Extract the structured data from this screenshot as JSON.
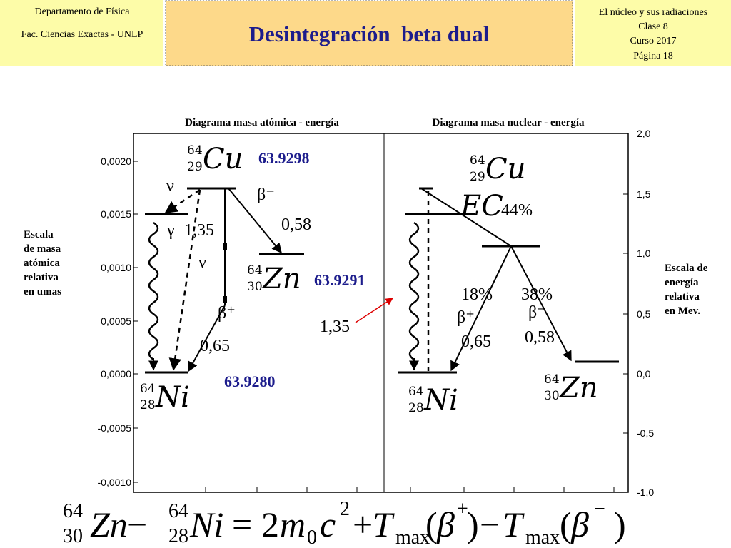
{
  "header": {
    "left": [
      "Departamento de Física",
      "Fac. Ciencias Exactas - UNLP"
    ],
    "title": "Desintegración  beta dual",
    "right": [
      "El núcleo y sus radiaciones",
      "Clase 8",
      "Curso 2017",
      "Página 18"
    ]
  },
  "diagram": {
    "titles": [
      "Diagrama masa atómica - energía",
      "Diagrama masa nuclear - energía"
    ],
    "left_axis": {
      "ticks": [
        "0,0020",
        "0,0015",
        "0,0010",
        "0,0005",
        "0,0000",
        "-0,0005",
        "-0,0010"
      ],
      "label": [
        "Escala",
        "de masa",
        "atómica",
        "relativa",
        "en umas"
      ]
    },
    "right_axis": {
      "ticks": [
        "2,0",
        "1,5",
        "1,0",
        "0,5",
        "0,0",
        "-0,5",
        "-1,0"
      ],
      "label": [
        "Escala de",
        "energía",
        "relativa",
        "en Mev."
      ]
    },
    "atomic": {
      "nuclides": [
        {
          "mass": "64",
          "z": "29",
          "symbol": "Cu",
          "atomic_mass": "63.9298"
        },
        {
          "mass": "64",
          "z": "30",
          "symbol": "Zn",
          "atomic_mass": "63.9291"
        },
        {
          "mass": "64",
          "z": "28",
          "symbol": "Ni",
          "atomic_mass": "63.9280"
        }
      ],
      "labels": [
        "ν",
        "γ",
        "1,35",
        "β⁻",
        "0,58",
        "ν",
        "β⁺",
        "0,65"
      ]
    },
    "nuclear": {
      "nuclides": [
        {
          "mass": "64",
          "z": "29",
          "symbol": "Cu"
        },
        {
          "mass": "64",
          "z": "28",
          "symbol": "Ni"
        },
        {
          "mass": "64",
          "z": "30",
          "symbol": "Zn"
        }
      ],
      "labels": [
        "EC",
        "44%",
        "18%",
        "38%",
        "β⁺",
        "β⁻",
        "0,65",
        "0,58",
        "1,35"
      ]
    }
  },
  "equation": [
    "64",
    "30",
    "Zn",
    "−",
    "64",
    "28",
    "Ni",
    "=",
    "2",
    "m",
    "0",
    "c",
    "2",
    "+",
    "T",
    "max",
    "(",
    "β",
    "+",
    ")",
    "−",
    "T",
    "max",
    "(",
    "β",
    "−",
    ")"
  ]
}
